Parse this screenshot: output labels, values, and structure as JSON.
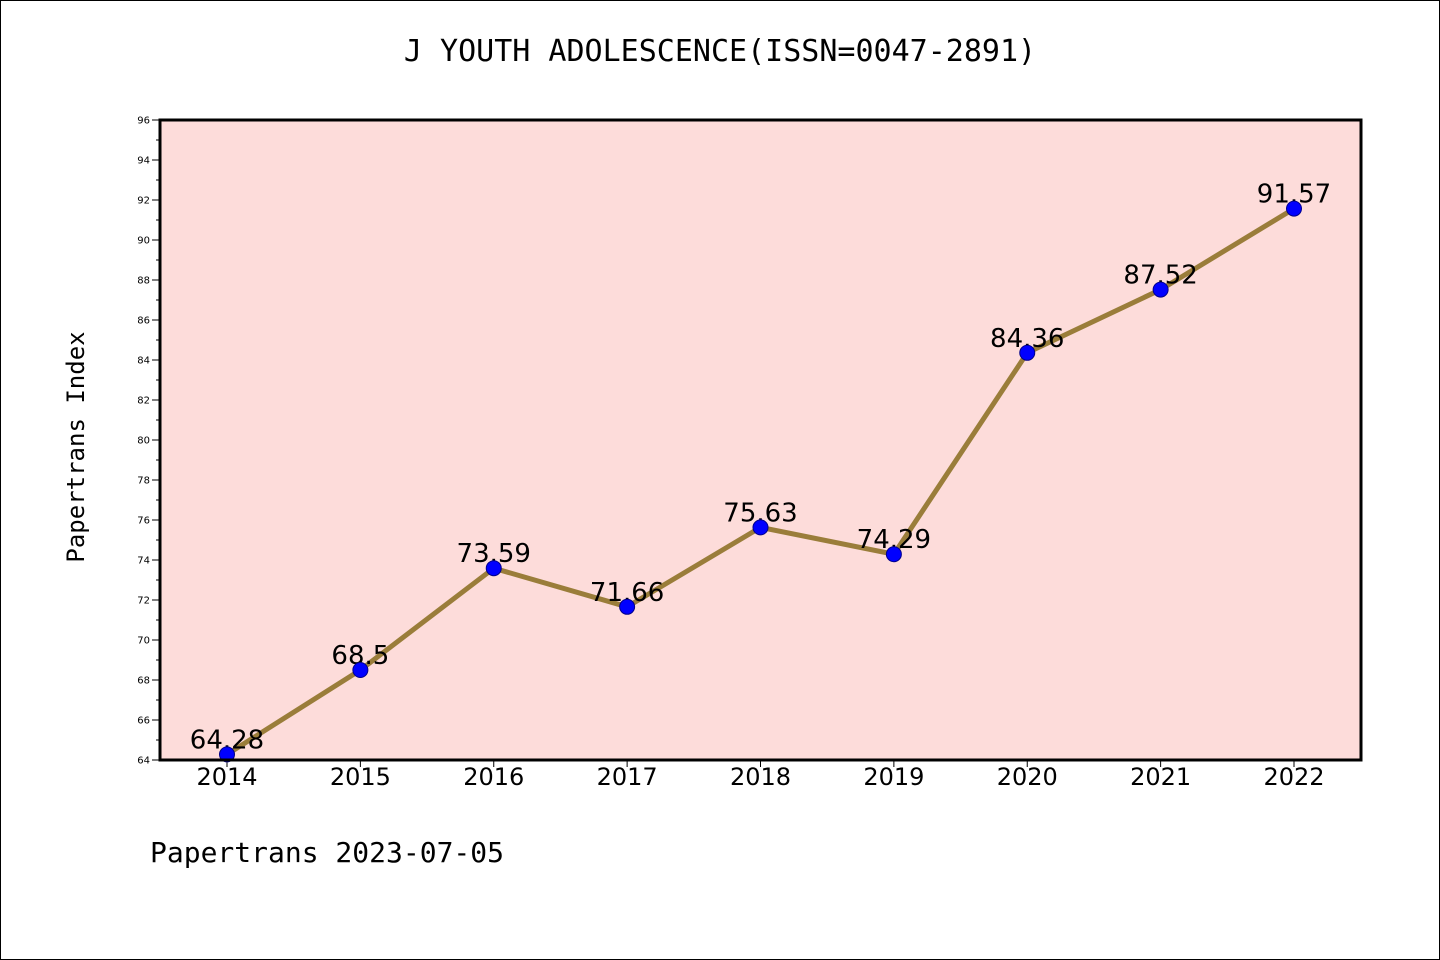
{
  "chart_data": {
    "type": "line",
    "title": "J YOUTH ADOLESCENCE(ISSN=0047-2891)",
    "ylabel": "Papertrans Index",
    "xlabel": "",
    "categories": [
      "2014",
      "2015",
      "2016",
      "2017",
      "2018",
      "2019",
      "2020",
      "2021",
      "2022"
    ],
    "values": [
      64.28,
      68.5,
      73.59,
      71.66,
      75.63,
      74.29,
      84.36,
      87.52,
      91.57
    ],
    "data_labels": [
      "64.28",
      "68.5",
      "73.59",
      "71.66",
      "75.63",
      "74.29",
      "84.36",
      "87.52",
      "91.57"
    ],
    "ylim": [
      64,
      96
    ],
    "yticks": [
      64,
      66,
      68,
      70,
      72,
      74,
      76,
      78,
      80,
      82,
      84,
      86,
      88,
      90,
      92,
      94,
      96
    ],
    "grid": false,
    "colors": {
      "plot_background": "#fddcda",
      "line": "#9a7d3a",
      "marker": "#0000ff",
      "marker_edge": "#00008b"
    }
  },
  "footer": "Papertrans 2023-07-05"
}
